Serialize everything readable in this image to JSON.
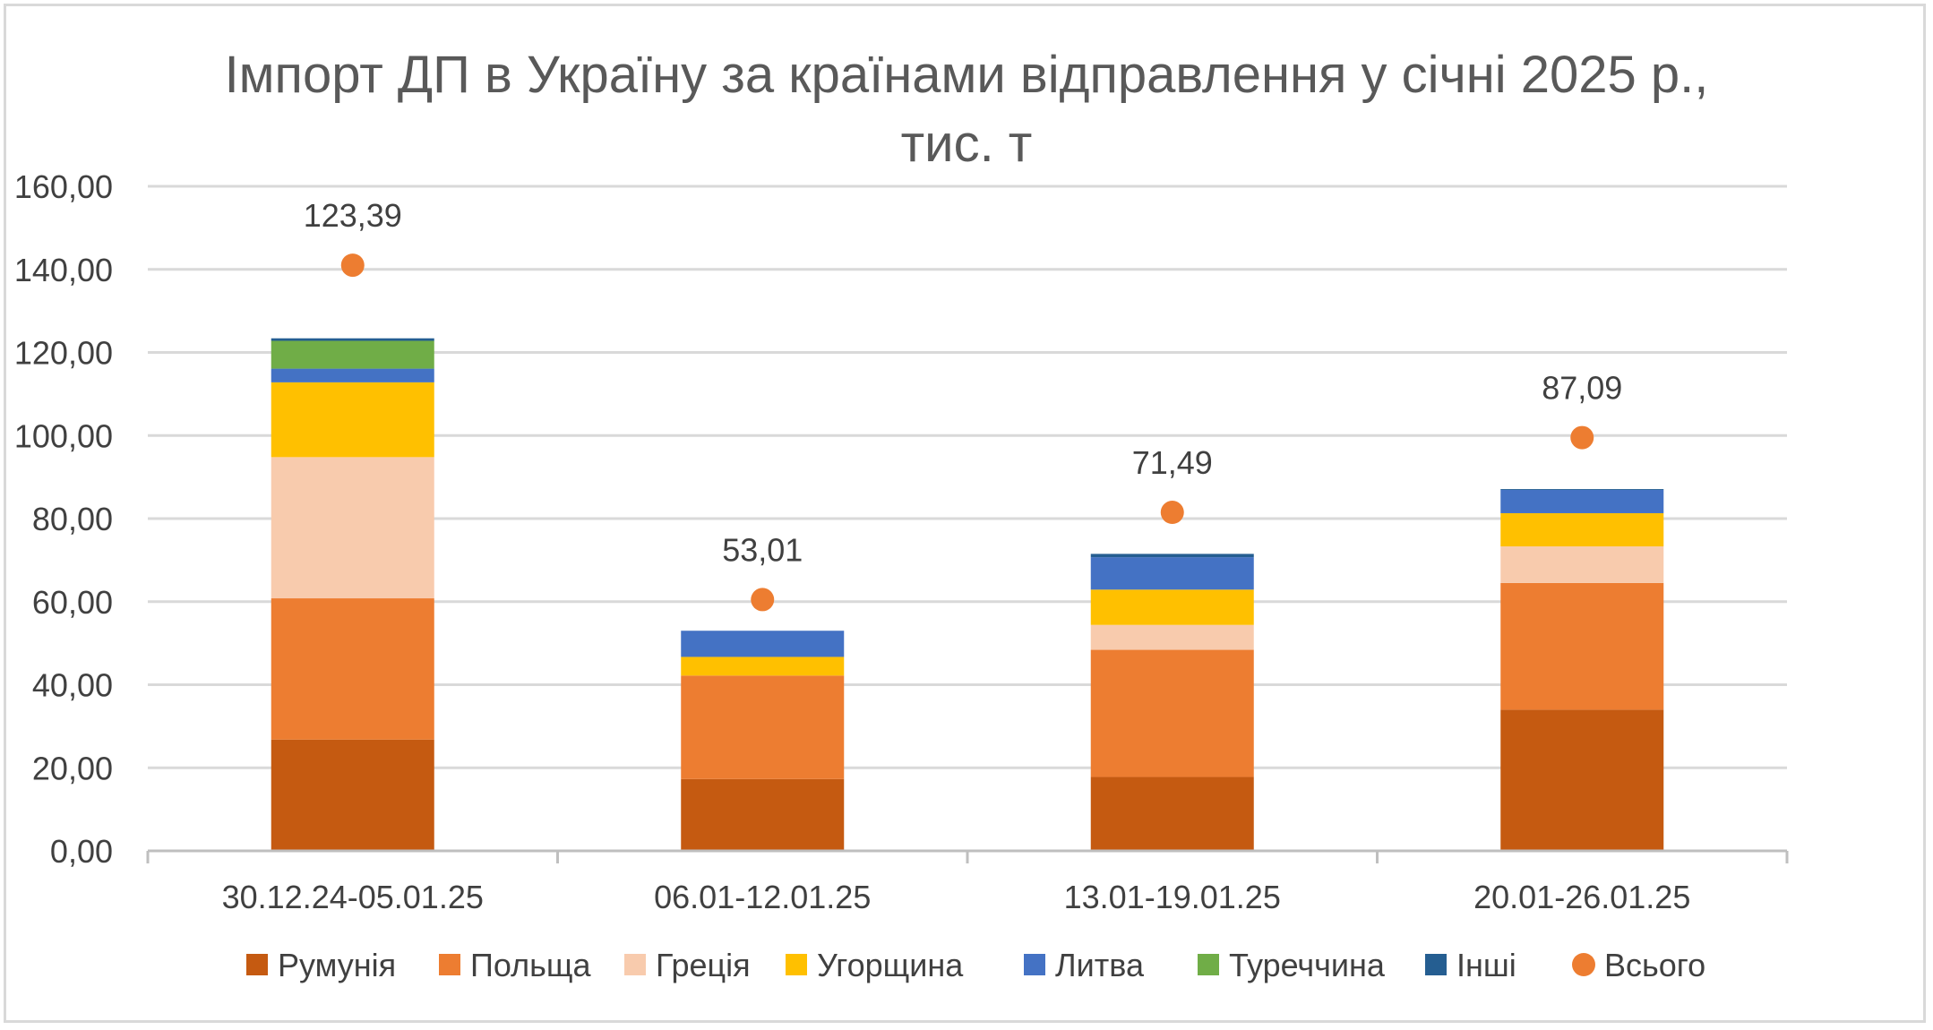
{
  "chart_data": {
    "type": "bar",
    "stacked": true,
    "title": "Імпорт ДП в Україну за країнами відправлення у січні 2025 р.,",
    "title_line2": "тис. т",
    "xlabel": "",
    "ylabel": "",
    "ylim": [
      0,
      160
    ],
    "y_ticks": [
      "0,00",
      "20,00",
      "40,00",
      "60,00",
      "80,00",
      "100,00",
      "120,00",
      "140,00",
      "160,00"
    ],
    "grid": true,
    "legend_position": "bottom",
    "categories": [
      "30.12.24-05.01.25",
      "06.01-12.01.25",
      "13.01-19.01.25",
      "20.01-26.01.25"
    ],
    "series": [
      {
        "name": "Румунія",
        "color": "#C55A11",
        "values": [
          26.8,
          17.3,
          17.8,
          34.0
        ]
      },
      {
        "name": "Польща",
        "color": "#ED7D31",
        "values": [
          34.0,
          24.9,
          30.6,
          30.5
        ]
      },
      {
        "name": "Греція",
        "color": "#F8CBAD",
        "values": [
          34.0,
          0.0,
          6.0,
          8.8
        ]
      },
      {
        "name": "Угорщина",
        "color": "#FFC000",
        "values": [
          18.0,
          4.5,
          8.5,
          8.0
        ]
      },
      {
        "name": "Литва",
        "color": "#4472C4",
        "values": [
          3.3,
          6.3,
          7.8,
          5.6
        ]
      },
      {
        "name": "Туреччина",
        "color": "#70AD47",
        "values": [
          6.7,
          0.0,
          0.0,
          0.0
        ]
      },
      {
        "name": "Інші",
        "color": "#255E91",
        "values": [
          0.6,
          0.0,
          0.8,
          0.2
        ]
      }
    ],
    "total": {
      "name": "Всього",
      "color": "#ED7D31",
      "marker": "circle",
      "values": [
        123.39,
        53.01,
        71.49,
        87.09
      ],
      "labels": [
        "123,39",
        "53,01",
        "71,49",
        "87,09"
      ],
      "marker_y_values": [
        141.0,
        60.5,
        81.5,
        99.5
      ]
    }
  },
  "colors": {
    "gridline": "#d9d9d9",
    "axis": "#bfbfbf",
    "frame": "#d9d9d9"
  }
}
